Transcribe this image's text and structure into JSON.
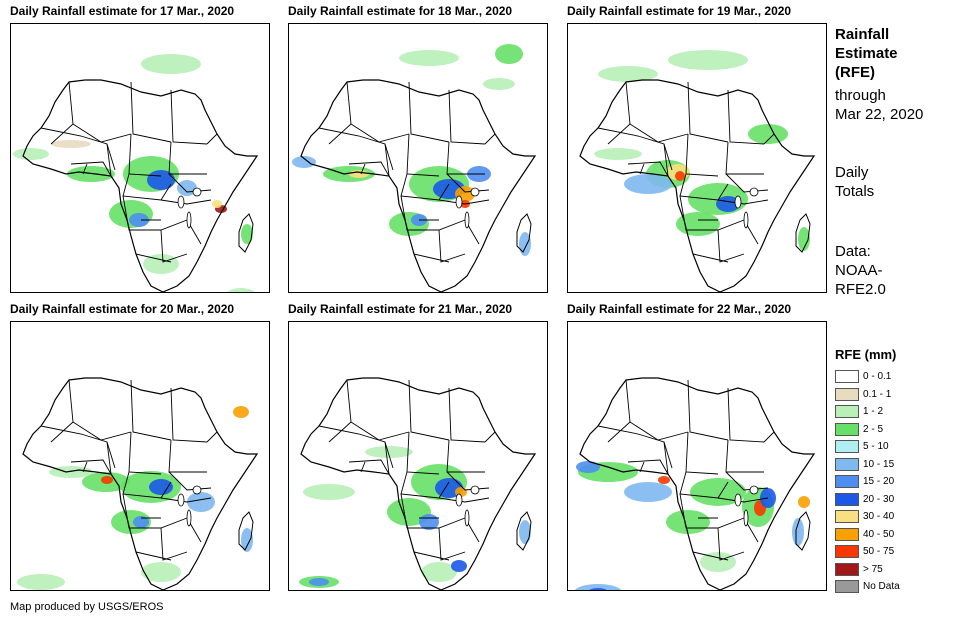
{
  "panels": [
    {
      "title": "Daily Rainfall estimate for 17 Mar., 2020"
    },
    {
      "title": "Daily Rainfall estimate for 18 Mar., 2020"
    },
    {
      "title": "Daily Rainfall estimate for 19 Mar., 2020"
    },
    {
      "title": "Daily Rainfall estimate for 20 Mar., 2020"
    },
    {
      "title": "Daily Rainfall estimate for 21 Mar., 2020"
    },
    {
      "title": "Daily Rainfall estimate for 22 Mar., 2020"
    }
  ],
  "sidebar": {
    "title_line1": "Rainfall",
    "title_line2": "Estimate",
    "title_line3": "(RFE)",
    "through_line1": "through",
    "through_line2": "Mar 22, 2020",
    "totals_line1": "Daily",
    "totals_line2": "Totals",
    "data_line1": "Data:",
    "data_line2": "NOAA-",
    "data_line3": "RFE2.0"
  },
  "legend": {
    "title": "RFE (mm)",
    "items": [
      {
        "label": "0 - 0.1",
        "color": "#ffffff"
      },
      {
        "label": "0.1 - 1",
        "color": "#e8dcc0"
      },
      {
        "label": "1 - 2",
        "color": "#b8f0b8"
      },
      {
        "label": "2 - 5",
        "color": "#66e066"
      },
      {
        "label": "5 - 10",
        "color": "#b0eef4"
      },
      {
        "label": "10 - 15",
        "color": "#80b8f0"
      },
      {
        "label": "15 - 20",
        "color": "#4e8ef0"
      },
      {
        "label": "20 - 30",
        "color": "#1c58e8"
      },
      {
        "label": "30 - 40",
        "color": "#f8e080"
      },
      {
        "label": "40 - 50",
        "color": "#f8a000"
      },
      {
        "label": "50 - 75",
        "color": "#f83800"
      },
      {
        "label": "> 75",
        "color": "#a01818"
      },
      {
        "label": "No Data",
        "color": "#999999"
      }
    ]
  },
  "credit": "Map produced by USGS/EROS"
}
